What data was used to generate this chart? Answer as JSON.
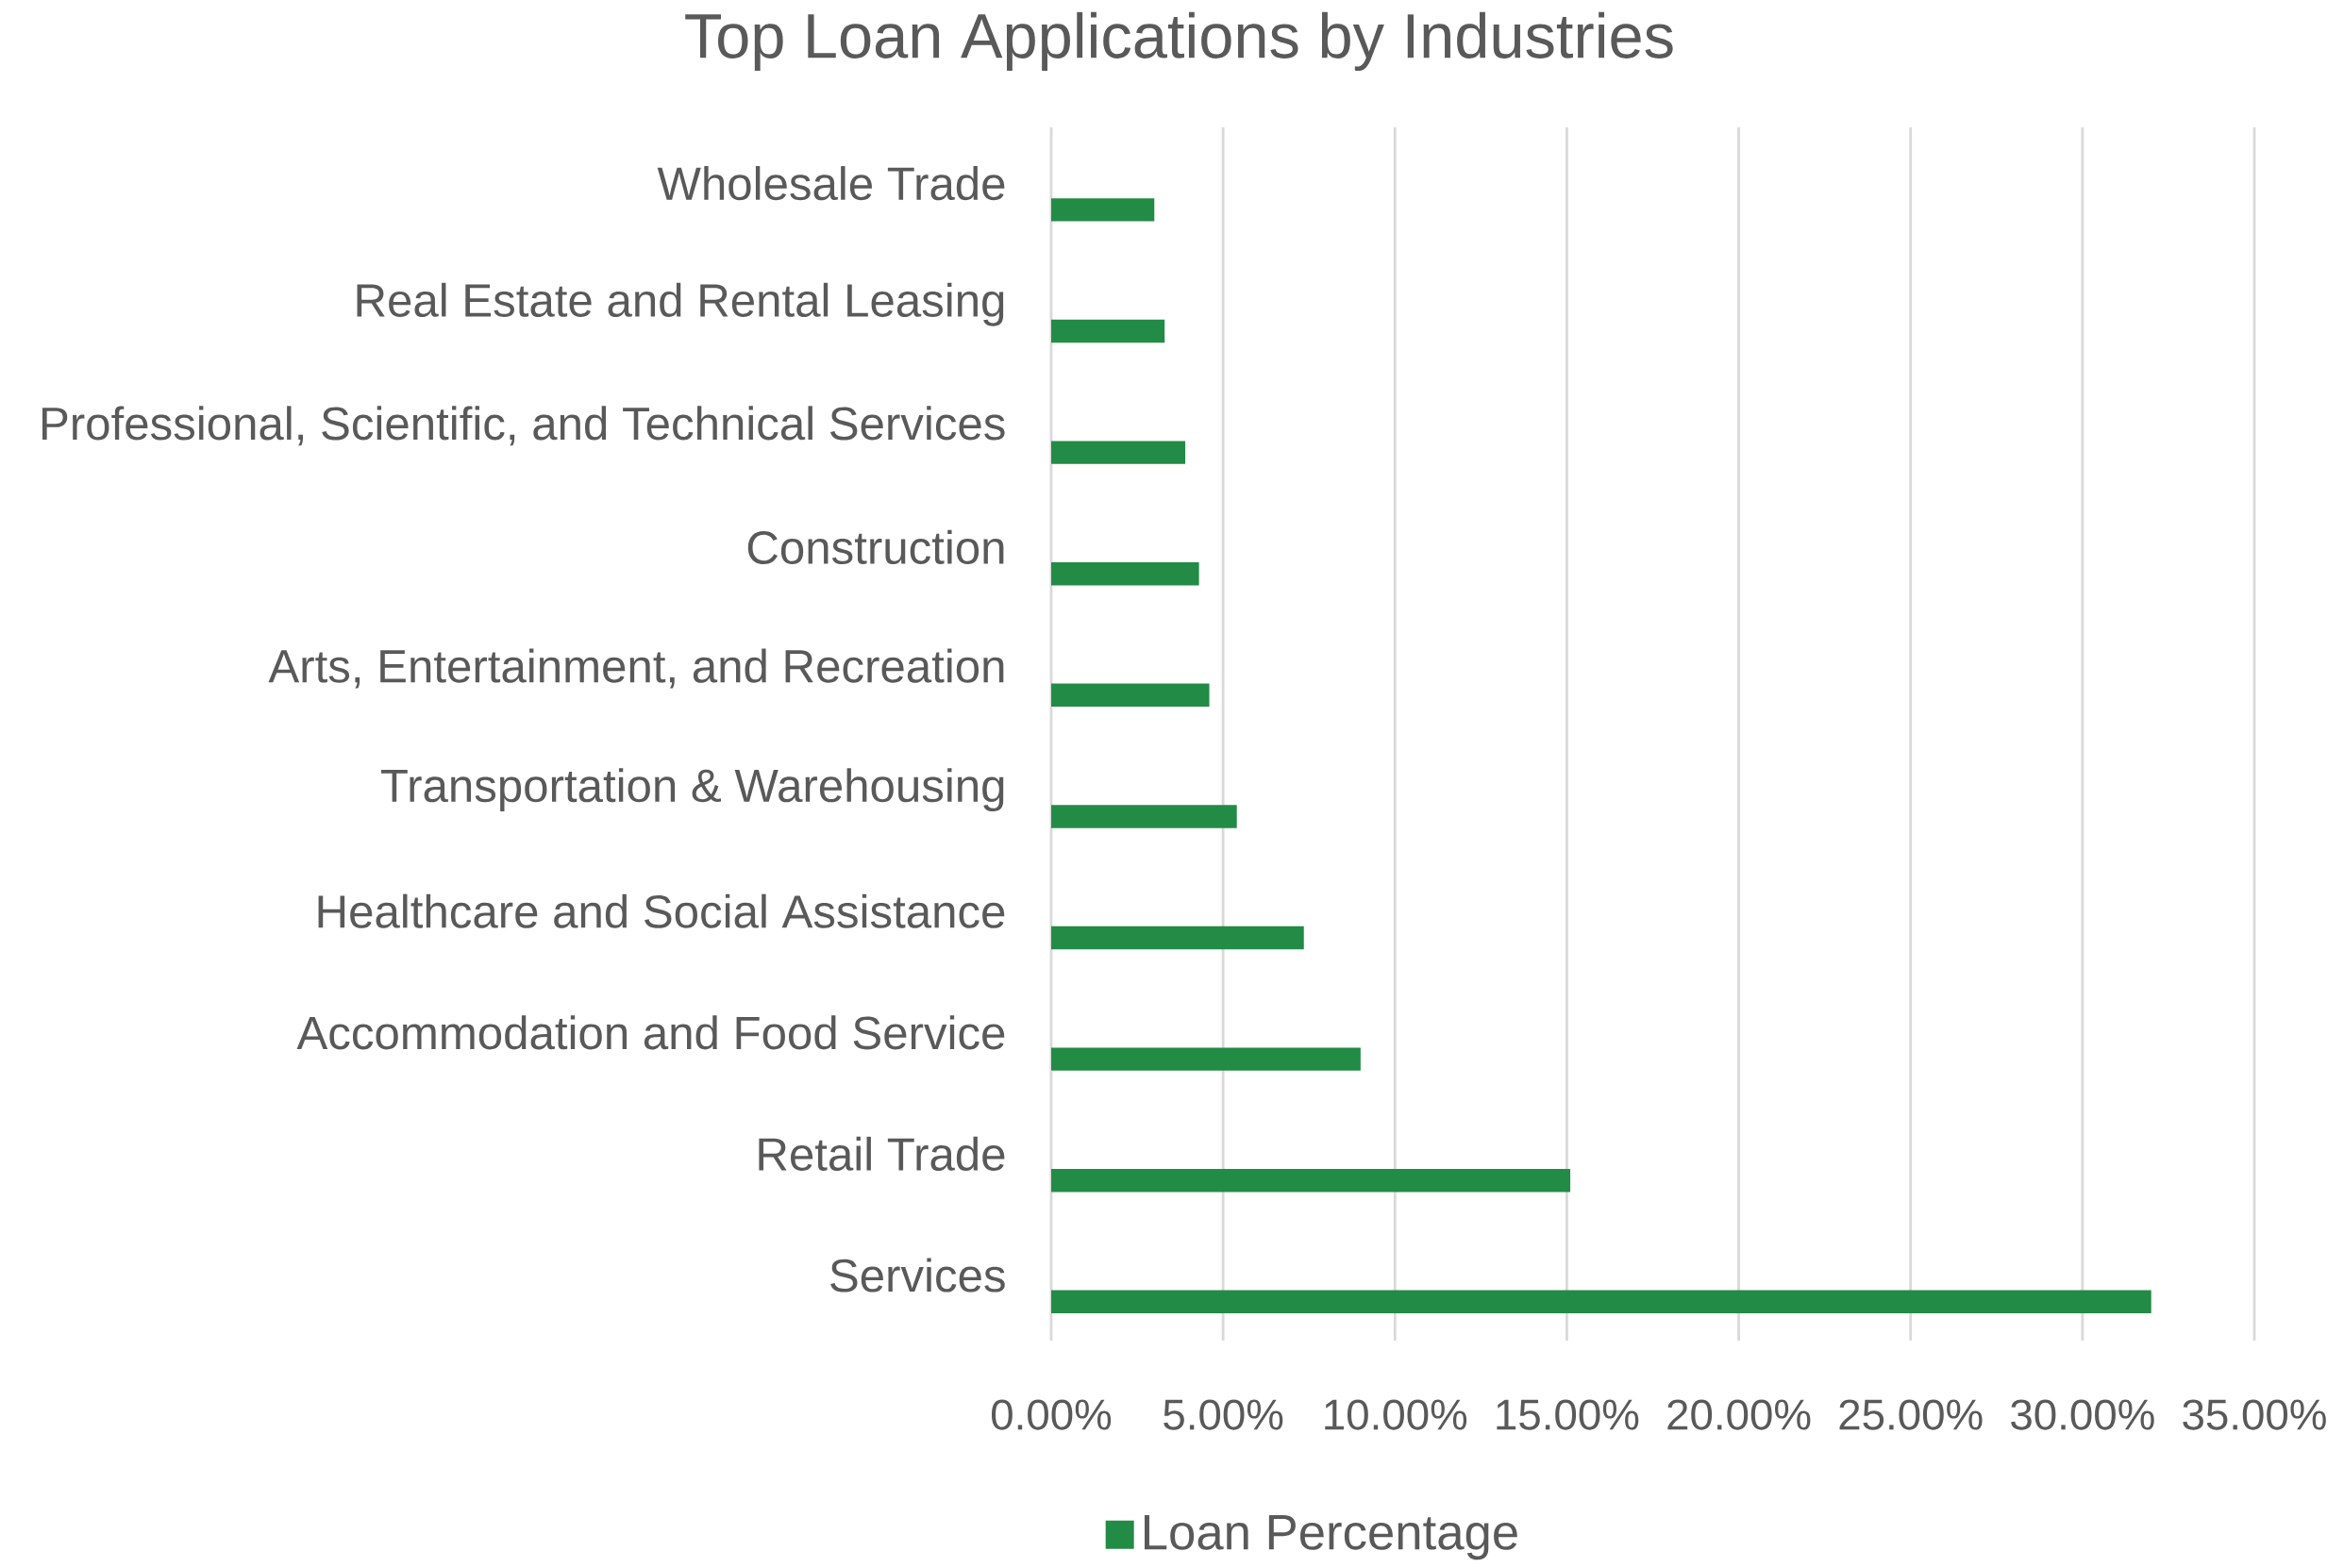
{
  "chart_data": {
    "type": "bar",
    "orientation": "horizontal",
    "title": "Top Loan Applications by Industries",
    "categories": [
      "Wholesale Trade",
      "Real Estate and Rental Leasing",
      "Professional, Scientific, and Technical Services",
      "Construction",
      "Arts, Entertainment, and Recreation",
      "Transportation & Warehousing",
      "Healthcare and Social Assistance",
      "Accommodation and Food Service",
      "Retail Trade",
      "Services"
    ],
    "series": [
      {
        "name": "Loan Percentage",
        "color": "#228b45",
        "values": [
          3.0,
          3.3,
          3.9,
          4.3,
          4.6,
          5.4,
          7.35,
          9.0,
          15.1,
          32.0
        ]
      }
    ],
    "xlim": [
      0,
      35
    ],
    "xticks": [
      {
        "value": 0,
        "label": "0.00%"
      },
      {
        "value": 5,
        "label": "5.00%"
      },
      {
        "value": 10,
        "label": "10.00%"
      },
      {
        "value": 15,
        "label": "15.00%"
      },
      {
        "value": 20,
        "label": "20.00%"
      },
      {
        "value": 25,
        "label": "25.00%"
      },
      {
        "value": 30,
        "label": "30.00%"
      },
      {
        "value": 35,
        "label": "35.00%"
      }
    ],
    "grid": "x",
    "legend": "bottom"
  }
}
